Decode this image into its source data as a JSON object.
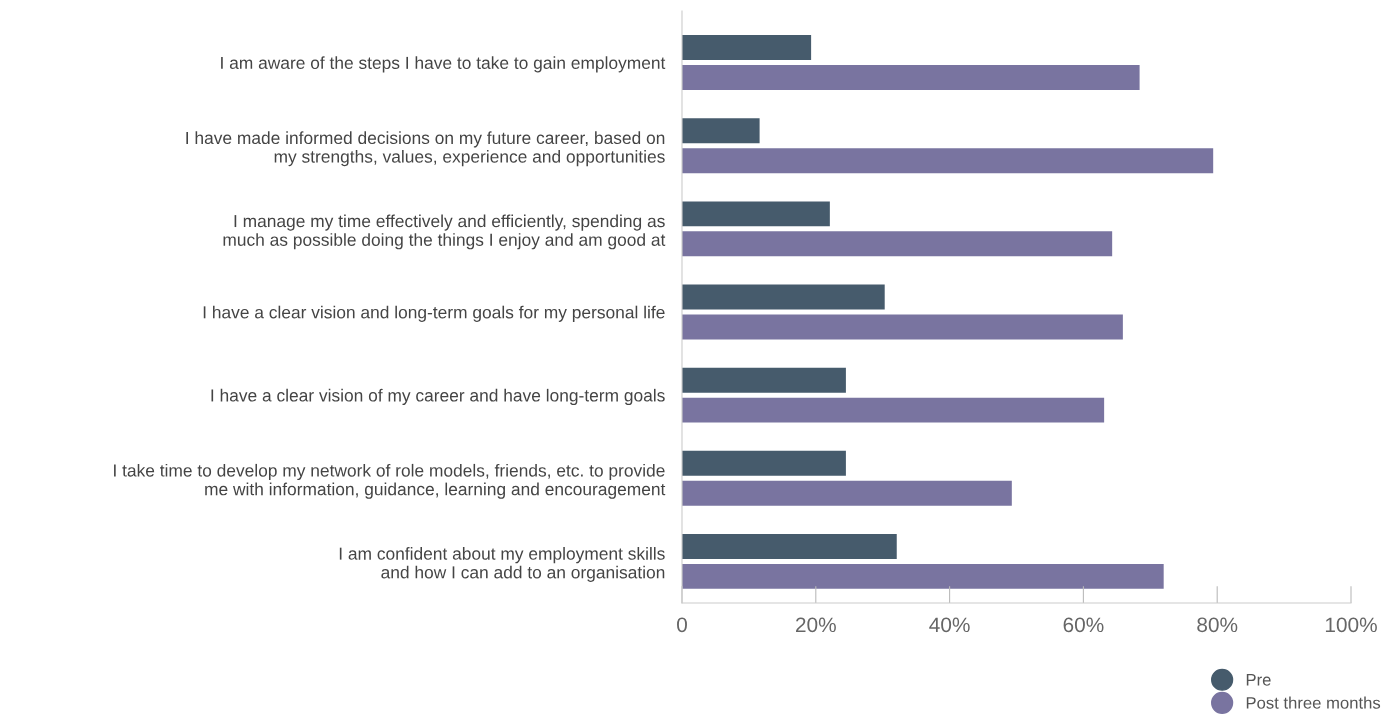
{
  "chart_data": {
    "type": "bar",
    "orientation": "horizontal",
    "categories": [
      "I am aware of the steps I have to take to gain employment",
      "I have made informed decisions on my future career, based on\nmy strengths, values, experience and opportunities",
      "I manage my time effectively and efficiently, spending as\nmuch as possible doing the things I enjoy and am good at",
      "I have a clear vision and long-term goals for my personal life",
      "I have a clear vision of my career and have long-term goals",
      "I take time to develop my network of role models, friends, etc. to provide\nme with information, guidance, learning and encouragement",
      "I am confident about my employment skills\nand how I can add to an organisation"
    ],
    "series": [
      {
        "name": "Pre",
        "color": "#465b6c",
        "values": [
          19.3,
          11.6,
          22.1,
          30.3,
          24.5,
          24.5,
          32.1
        ]
      },
      {
        "name": "Post three months",
        "color": "#7974a0",
        "values": [
          68.4,
          79.4,
          64.3,
          65.9,
          63.1,
          49.3,
          72.0
        ]
      }
    ],
    "xlim": [
      0,
      100
    ],
    "xticks": [
      0,
      {
        "value": 20,
        "label": "20%"
      },
      {
        "value": 40,
        "label": "40%"
      },
      {
        "value": 60,
        "label": "60%"
      },
      {
        "value": 80,
        "label": "80%"
      },
      {
        "value": 100,
        "label": "100%"
      }
    ],
    "grid": false,
    "legend": "bottom right"
  }
}
